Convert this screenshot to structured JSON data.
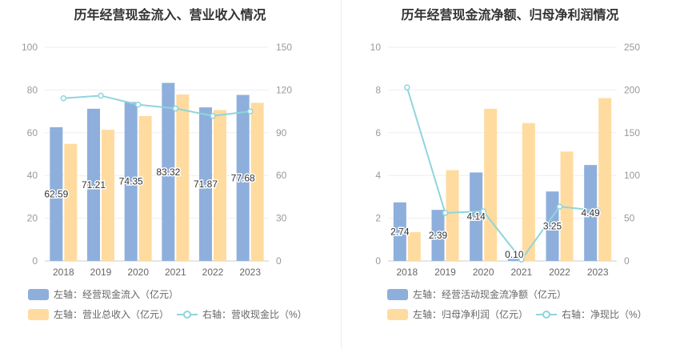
{
  "colors": {
    "bar_blue": "#8eafdc",
    "bar_orange": "#ffdba0",
    "line": "#8fd5dc"
  },
  "chart_data": [
    {
      "type": "bar",
      "title": "历年经营现金流入、营业收入情况",
      "categories": [
        "2018",
        "2019",
        "2020",
        "2021",
        "2022",
        "2023"
      ],
      "left_axis": {
        "min": 0,
        "max": 100,
        "ticks": [
          "0",
          "20",
          "40",
          "60",
          "80",
          "100"
        ]
      },
      "right_axis": {
        "min": 0,
        "max": 150,
        "ticks": [
          "0",
          "30",
          "60",
          "90",
          "120",
          "150"
        ]
      },
      "series": [
        {
          "name": "左轴：经营现金流入（亿元）",
          "kind": "bar",
          "axis": "left",
          "color": "#8eafdc",
          "values": [
            62.59,
            71.21,
            74.35,
            83.32,
            71.87,
            77.68
          ],
          "labels": [
            "62.59",
            "71.21",
            "74.35",
            "83.32",
            "71.87",
            "77.68"
          ]
        },
        {
          "name": "左轴：营业总收入（亿元）",
          "kind": "bar",
          "axis": "left",
          "color": "#ffdba0",
          "values": [
            54.8,
            61.4,
            67.8,
            77.9,
            70.6,
            74.0
          ]
        },
        {
          "name": "右轴：营收现金比（%）",
          "kind": "line",
          "axis": "right",
          "color": "#8fd5dc",
          "values": [
            114.2,
            116.0,
            109.7,
            107.0,
            101.8,
            105.0
          ]
        }
      ],
      "legend": [
        "左轴：经营现金流入（亿元）",
        "左轴：营业总收入（亿元）",
        "右轴：营收现金比（%）"
      ]
    },
    {
      "type": "bar",
      "title": "历年经营现金流净额、归母净利润情况",
      "categories": [
        "2018",
        "2019",
        "2020",
        "2021",
        "2022",
        "2023"
      ],
      "left_axis": {
        "min": 0,
        "max": 10,
        "ticks": [
          "0",
          "2",
          "4",
          "6",
          "8",
          "10"
        ]
      },
      "right_axis": {
        "min": 0,
        "max": 250,
        "ticks": [
          "0",
          "50",
          "100",
          "150",
          "200",
          "250"
        ]
      },
      "series": [
        {
          "name": "左轴：经营活动现金流净额（亿元）",
          "kind": "bar",
          "axis": "left",
          "color": "#8eafdc",
          "values": [
            2.74,
            2.39,
            4.14,
            0.1,
            3.25,
            4.49
          ],
          "labels": [
            "2.74",
            "2.39",
            "4.14",
            "0.10",
            "3.25",
            "4.49"
          ]
        },
        {
          "name": "左轴：归母净利润（亿元）",
          "kind": "bar",
          "axis": "left",
          "color": "#ffdba0",
          "values": [
            1.35,
            4.25,
            7.12,
            6.45,
            5.12,
            7.62
          ]
        },
        {
          "name": "右轴：净现比（%）",
          "kind": "line",
          "axis": "right",
          "color": "#8fd5dc",
          "values": [
            203.0,
            56.2,
            58.1,
            1.6,
            63.5,
            58.9
          ]
        }
      ],
      "legend": [
        "左轴：经营活动现金流净额（亿元）",
        "左轴：归母净利润（亿元）",
        "右轴：净现比（%）"
      ]
    }
  ]
}
